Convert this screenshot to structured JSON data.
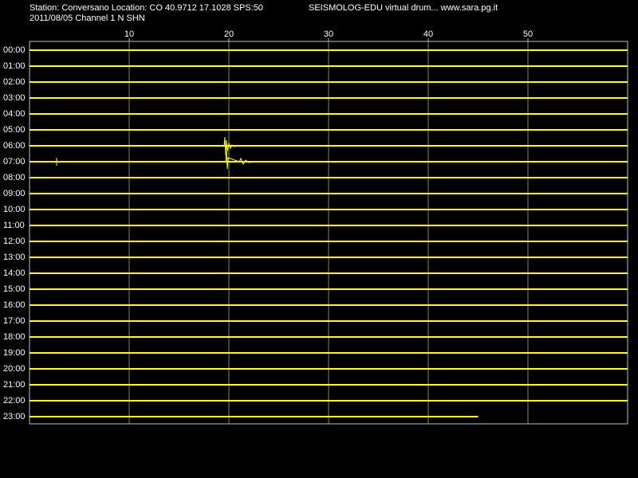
{
  "chart_data": {
    "type": "helicorder",
    "title": "Station: Conversano Location: CO 40.9712 17.1028 SPS:50",
    "subtitle": "2011/08/05  Channel 1 N SHN",
    "source": "SEISMOLOG-EDU virtual drum... www.sara.pg.it",
    "categories": [
      "00:00",
      "01:00",
      "02:00",
      "03:00",
      "04:00",
      "05:00",
      "06:00",
      "07:00",
      "08:00",
      "09:00",
      "10:00",
      "11:00",
      "12:00",
      "13:00",
      "14:00",
      "15:00",
      "16:00",
      "17:00",
      "18:00",
      "19:00",
      "20:00",
      "21:00",
      "22:00",
      "23:00"
    ],
    "values": [
      60,
      60,
      60,
      60,
      60,
      60,
      60,
      60,
      60,
      60,
      60,
      60,
      60,
      60,
      60,
      60,
      60,
      60,
      60,
      60,
      60,
      60,
      60,
      45
    ],
    "color": "#ffff00",
    "xlim": [
      0,
      60
    ],
    "xticks": [
      10,
      20,
      30,
      40,
      50
    ],
    "grid": true
  }
}
